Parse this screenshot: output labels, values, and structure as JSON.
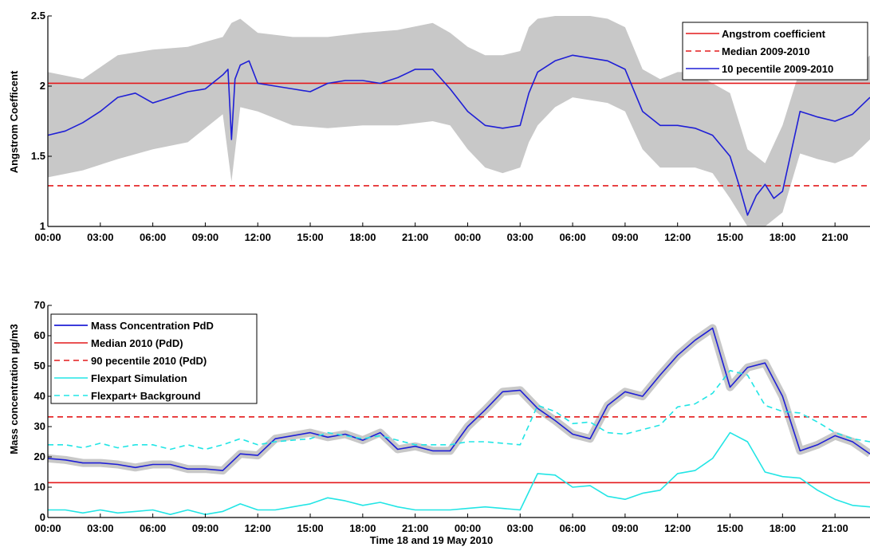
{
  "chart_data": [
    {
      "type": "line",
      "ylabel": "Angstrom Coefficent",
      "ylim": [
        1,
        2.5
      ],
      "y_ticks": [
        "1",
        "1.5",
        "2",
        "2.5"
      ],
      "x_range_hours": [
        0,
        47
      ],
      "x_tick_labels": [
        "00:00",
        "03:00",
        "06:00",
        "09:00",
        "12:00",
        "15:00",
        "18:00",
        "21:00",
        "00:00",
        "03:00",
        "06:00",
        "09:00",
        "12:00",
        "15:00",
        "18:00",
        "21:00"
      ],
      "legend_position": "top-right",
      "legend": [
        "Angstrom coefficient",
        "Median 2009-2010",
        "10 pecentile 2009-2010"
      ],
      "hlines": [
        {
          "name": "Angstrom coefficient",
          "value": 2.02,
          "color": "#e41a1c",
          "style": "solid"
        },
        {
          "name": "Median 2009-2010",
          "value": 1.29,
          "color": "#e41a1c",
          "style": "dashed"
        }
      ],
      "series": [
        {
          "name": "10 pecentile 2009-2010",
          "color": "#1f1fd6",
          "x": [
            0,
            1,
            2,
            3,
            4,
            5,
            6,
            7,
            8,
            9,
            10,
            10.3,
            10.5,
            10.7,
            11,
            11.5,
            12,
            13,
            14,
            15,
            16,
            17,
            18,
            19,
            20,
            21,
            22,
            23,
            24,
            25,
            26,
            27,
            27.5,
            28,
            29,
            30,
            31,
            32,
            33,
            34,
            35,
            36,
            37,
            38,
            39,
            39.5,
            40,
            40.5,
            41,
            41.5,
            42,
            43,
            44,
            45,
            46,
            47
          ],
          "y": [
            1.65,
            1.68,
            1.74,
            1.82,
            1.92,
            1.95,
            1.88,
            1.92,
            1.96,
            1.98,
            2.08,
            2.12,
            1.62,
            2.05,
            2.15,
            2.18,
            2.02,
            2.0,
            1.98,
            1.96,
            2.02,
            2.04,
            2.04,
            2.02,
            2.06,
            2.12,
            2.12,
            1.98,
            1.82,
            1.72,
            1.7,
            1.72,
            1.95,
            2.1,
            2.18,
            2.22,
            2.2,
            2.18,
            2.12,
            1.82,
            1.72,
            1.72,
            1.7,
            1.65,
            1.5,
            1.3,
            1.08,
            1.22,
            1.3,
            1.2,
            1.25,
            1.82,
            1.78,
            1.75,
            1.8,
            1.92
          ]
        }
      ],
      "band": {
        "color": "#c8c8c8",
        "x": [
          0,
          2,
          4,
          6,
          8,
          10,
          10.5,
          11,
          12,
          14,
          16,
          18,
          20,
          22,
          23,
          24,
          25,
          26,
          27,
          27.5,
          28,
          29,
          30,
          31,
          32,
          33,
          34,
          35,
          36,
          37,
          38,
          39,
          40,
          41,
          42,
          43,
          44,
          45,
          46,
          47
        ],
        "upper": [
          2.1,
          2.05,
          2.22,
          2.26,
          2.28,
          2.35,
          2.45,
          2.48,
          2.38,
          2.35,
          2.35,
          2.38,
          2.4,
          2.45,
          2.38,
          2.28,
          2.22,
          2.22,
          2.25,
          2.42,
          2.48,
          2.5,
          2.5,
          2.5,
          2.48,
          2.42,
          2.12,
          2.05,
          2.1,
          2.1,
          2.02,
          1.95,
          1.55,
          1.45,
          1.72,
          2.12,
          2.05,
          2.05,
          2.1,
          2.22
        ],
        "lower": [
          1.35,
          1.4,
          1.48,
          1.55,
          1.6,
          1.8,
          1.32,
          1.85,
          1.82,
          1.72,
          1.7,
          1.72,
          1.72,
          1.75,
          1.72,
          1.55,
          1.42,
          1.38,
          1.42,
          1.6,
          1.72,
          1.85,
          1.92,
          1.9,
          1.88,
          1.82,
          1.55,
          1.42,
          1.42,
          1.42,
          1.38,
          1.2,
          0.95,
          0.95,
          1.1,
          1.52,
          1.48,
          1.45,
          1.5,
          1.62
        ]
      }
    },
    {
      "type": "line",
      "ylabel": "Mass concentration µg/m3",
      "xlabel": "Time 18 and 19 May 2010",
      "ylim": [
        0,
        70
      ],
      "y_ticks": [
        "0",
        "10",
        "20",
        "30",
        "40",
        "50",
        "60",
        "70"
      ],
      "x_range_hours": [
        0,
        47
      ],
      "x_tick_labels": [
        "00:00",
        "03:00",
        "06:00",
        "09:00",
        "12:00",
        "15:00",
        "18:00",
        "21:00",
        "00:00",
        "03:00",
        "06:00",
        "09:00",
        "12:00",
        "15:00",
        "18:00",
        "21:00"
      ],
      "legend_position": "top-left",
      "legend": [
        "Mass Concentration PdD",
        "Median 2010 (PdD)",
        "90 pecentile 2010 (PdD)",
        "Flexpart Simulation",
        "Flexpart+ Background"
      ],
      "hlines": [
        {
          "name": "Median 2010 (PdD)",
          "value": 11.5,
          "color": "#e41a1c",
          "style": "solid"
        },
        {
          "name": "90 pecentile 2010 (PdD)",
          "value": 33.2,
          "color": "#e41a1c",
          "style": "dashed"
        }
      ],
      "series": [
        {
          "name": "Mass Concentration PdD",
          "color": "#1f1fd6",
          "style": "solid",
          "band_color": "#c8c8c8",
          "x": [
            0,
            1,
            2,
            3,
            4,
            5,
            6,
            7,
            8,
            9,
            10,
            11,
            12,
            13,
            14,
            15,
            16,
            17,
            18,
            19,
            20,
            21,
            22,
            23,
            24,
            25,
            26,
            27,
            28,
            29,
            30,
            31,
            32,
            33,
            34,
            35,
            36,
            37,
            38,
            39,
            40,
            41,
            42,
            43,
            44,
            45,
            46,
            47
          ],
          "y": [
            19.5,
            19,
            18,
            18,
            17.5,
            16.5,
            17.5,
            17.5,
            16,
            16,
            15.5,
            21,
            20.5,
            26,
            27,
            28,
            26.5,
            27.5,
            25.5,
            28,
            22.5,
            23.5,
            22,
            22,
            30,
            35.5,
            41.5,
            42,
            36,
            32,
            27.5,
            26,
            37,
            41.5,
            40,
            47,
            53.5,
            58.5,
            62.5,
            43,
            49.5,
            51,
            40,
            22,
            24,
            27,
            25,
            21
          ]
        },
        {
          "name": "Flexpart Simulation",
          "color": "#22e5e5",
          "style": "solid",
          "x": [
            0,
            1,
            2,
            3,
            4,
            5,
            6,
            7,
            8,
            9,
            10,
            11,
            12,
            13,
            14,
            15,
            16,
            17,
            18,
            19,
            20,
            21,
            22,
            23,
            24,
            25,
            26,
            27,
            28,
            29,
            30,
            31,
            32,
            33,
            34,
            35,
            36,
            37,
            38,
            39,
            40,
            41,
            42,
            43,
            44,
            45,
            46,
            47
          ],
          "y": [
            2.5,
            2.5,
            1.5,
            2.5,
            1.5,
            2,
            2.5,
            1,
            2.5,
            1,
            2,
            4.5,
            2.5,
            2.5,
            3.5,
            4.5,
            6.5,
            5.5,
            4,
            5,
            3.5,
            2.5,
            2.5,
            2.5,
            3,
            3.5,
            3,
            2.5,
            14.5,
            14,
            10,
            10.5,
            7,
            6,
            8,
            9,
            14.5,
            15.5,
            19.5,
            28,
            25,
            15,
            13.5,
            13,
            9,
            6,
            4,
            3.5
          ]
        },
        {
          "name": "Flexpart+ Background",
          "color": "#22e5e5",
          "style": "dashed",
          "x": [
            0,
            1,
            2,
            3,
            4,
            5,
            6,
            7,
            8,
            9,
            10,
            11,
            12,
            13,
            14,
            15,
            16,
            17,
            18,
            19,
            20,
            21,
            22,
            23,
            24,
            25,
            26,
            27,
            28,
            29,
            30,
            31,
            32,
            33,
            34,
            35,
            36,
            37,
            38,
            39,
            40,
            41,
            42,
            43,
            44,
            45,
            46,
            47
          ],
          "y": [
            24,
            24,
            23,
            24.5,
            23,
            24,
            24,
            22.5,
            24,
            22.5,
            24,
            26,
            24,
            25,
            25.5,
            26,
            28,
            27,
            26,
            27,
            25.5,
            24,
            24,
            24,
            25,
            25,
            24.5,
            24,
            37,
            35,
            31,
            31.5,
            28,
            27.5,
            29,
            30.5,
            36.5,
            37.5,
            41,
            48.5,
            47,
            37,
            35,
            34.5,
            31.5,
            28,
            26,
            25
          ]
        }
      ]
    }
  ]
}
